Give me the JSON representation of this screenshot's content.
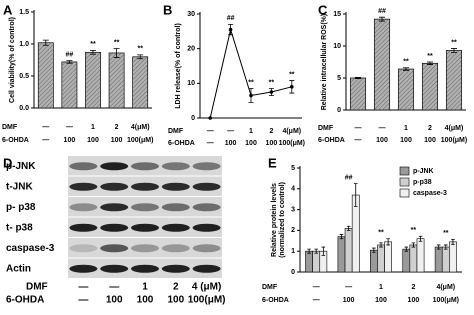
{
  "chart_data": [
    {
      "type": "bar",
      "panel": "A",
      "y_label": "Cell viability(% of control)",
      "color": "#b0b0b0",
      "values": [
        1.02,
        0.72,
        0.87,
        0.86,
        0.8
      ],
      "errors": [
        0.04,
        0.02,
        0.03,
        0.07,
        0.03
      ],
      "annotations": [
        null,
        "##",
        "**",
        "**",
        "**"
      ],
      "ylim": [
        0,
        1.5
      ],
      "yticks": [
        {
          "value": 0,
          "label": "0.0"
        },
        {
          "value": 0.5,
          "label": "0.5"
        },
        {
          "value": 1,
          "label": "1.0"
        },
        {
          "value": 1.5,
          "label": "1.5"
        }
      ],
      "treatments": [
        {
          "label": "DMF",
          "cells": [
            "—",
            "—",
            "1",
            "2",
            "4(μM)"
          ]
        },
        {
          "label": "6-OHDA",
          "cells": [
            "—",
            "100",
            "100",
            "100",
            "100(μM)"
          ]
        }
      ]
    },
    {
      "type": "line",
      "panel": "B",
      "y_label": "LDH release(% of control)",
      "color": "#000000",
      "values": [
        0,
        25.5,
        6.5,
        7.5,
        9
      ],
      "errors": [
        0,
        1.5,
        2,
        1,
        1.8
      ],
      "annotations": [
        null,
        "##",
        "**",
        "**",
        "**"
      ],
      "ylim": [
        0,
        30
      ],
      "yticks": [
        0,
        10,
        20,
        30
      ],
      "treatments": [
        {
          "label": "DMF",
          "cells": [
            "—",
            "—",
            "1",
            "2",
            "4(μM)"
          ]
        },
        {
          "label": "6-OHDA",
          "cells": [
            "—",
            "100",
            "100",
            "100",
            "100(μM)"
          ]
        }
      ]
    },
    {
      "type": "bar",
      "panel": "C",
      "y_label": "Relative intracellular ROS(%)",
      "color": "#b0b0b0",
      "values": [
        5,
        14.2,
        6.4,
        7.3,
        9.3
      ],
      "errors": [
        0.1,
        0.3,
        0.2,
        0.2,
        0.3
      ],
      "annotations": [
        null,
        "##",
        "**",
        "**",
        "**"
      ],
      "ylim": [
        0,
        15
      ],
      "yticks": [
        0,
        5,
        10,
        15
      ],
      "treatments": [
        {
          "label": "DMF",
          "cells": [
            "—",
            "—",
            "1",
            "2",
            "4(μM)"
          ]
        },
        {
          "label": "6-OHDA",
          "cells": [
            "—",
            "100",
            "100",
            "100",
            "100(μM)"
          ]
        }
      ]
    },
    {
      "type": "grouped_bar",
      "panel": "E",
      "y_label": "Relative protein levels",
      "y_label2": "(normalized to control)",
      "series": [
        {
          "name": "p-JNK",
          "color": "#9a9a9a",
          "values": [
            1.0,
            1.7,
            1.05,
            1.1,
            1.2
          ],
          "errors": [
            0.1,
            0.1,
            0.1,
            0.1,
            0.1
          ]
        },
        {
          "name": "p-p38",
          "color": "#d0d0d0",
          "values": [
            1.0,
            2.1,
            1.3,
            1.3,
            1.2
          ],
          "errors": [
            0.1,
            0.1,
            0.1,
            0.1,
            0.1
          ]
        },
        {
          "name": "caspase-3",
          "color": "#f0f0f0",
          "values": [
            1.0,
            3.7,
            1.45,
            1.6,
            1.45
          ],
          "errors": [
            0.2,
            0.55,
            0.15,
            0.12,
            0.12
          ]
        }
      ],
      "annotations": [
        null,
        "##",
        "**",
        "**",
        "**"
      ],
      "ylim": [
        0,
        5
      ],
      "yticks": [
        0,
        1,
        2,
        3,
        4,
        5
      ],
      "treatments": [
        {
          "label": "DMF",
          "cells": [
            "—",
            "—",
            "1",
            "2",
            "4(μM)"
          ]
        },
        {
          "label": "6-OHDA",
          "cells": [
            "—",
            "100",
            "100",
            "100",
            "100(μM)"
          ]
        }
      ]
    }
  ],
  "blot_panel": {
    "panel": "D",
    "rows": [
      "p-JNK",
      "t-JNK",
      "p- p38",
      "t- p38",
      "caspase-3",
      "Actin"
    ],
    "treatments": [
      {
        "label": "DMF",
        "cells": [
          "—",
          "—",
          "1",
          "2",
          "4 (μM)"
        ]
      },
      {
        "label": "6-OHDA",
        "cells": [
          "—",
          "100",
          "100",
          "100",
          "100(μM)"
        ]
      }
    ]
  }
}
